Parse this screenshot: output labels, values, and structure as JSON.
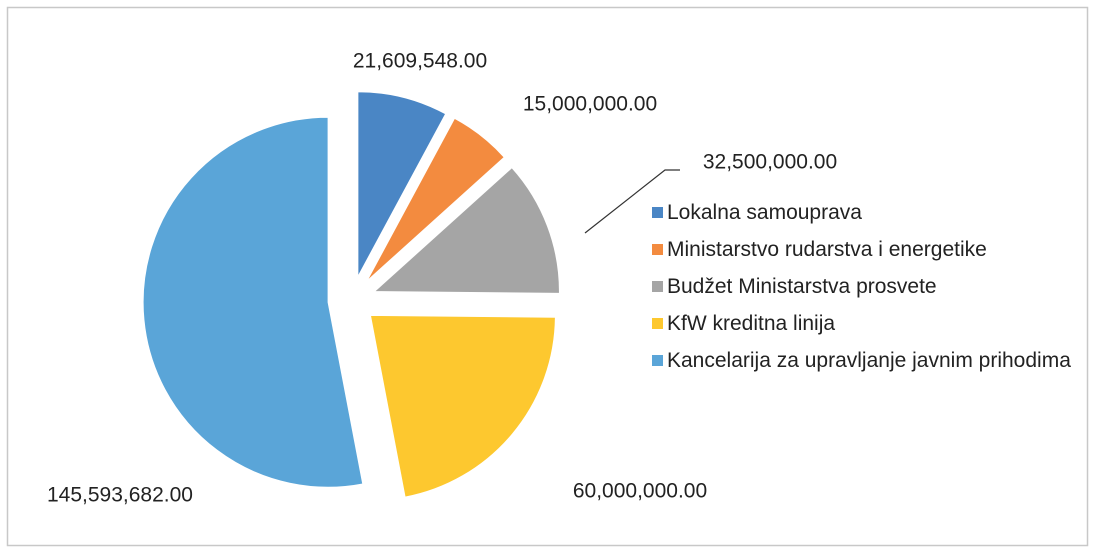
{
  "chart_data": {
    "type": "pie",
    "categories": [
      "Lokalna samouprava",
      "Ministarstvo rudarstva i energetike",
      "Budžet Ministarstva prosvete",
      "KfW kreditna linija",
      "Kancelarija za upravljanje javnim prihodima"
    ],
    "values": [
      21609548,
      15000000,
      32500000,
      60000000,
      145593682
    ],
    "value_labels": [
      "21,609,548.00",
      "15,000,000.00",
      "32,500,000.00",
      "60,000,000.00",
      "145,593,682.00"
    ],
    "colors": [
      "#4a86c5",
      "#f38b3f",
      "#a5a5a5",
      "#fdc82f",
      "#5aa5d8"
    ],
    "legend": "right"
  }
}
